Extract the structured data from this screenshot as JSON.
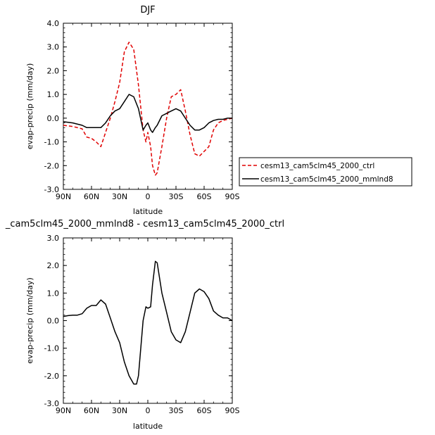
{
  "chart_data": [
    {
      "type": "line",
      "title": "DJF",
      "xlabel": "latitude",
      "ylabel": "evap-precip (mm/day)",
      "xlim": [
        90,
        -90
      ],
      "ylim": [
        -3.0,
        4.0
      ],
      "x_ticks": [
        90,
        60,
        30,
        0,
        -30,
        -60,
        -90
      ],
      "x_tick_labels": [
        "90N",
        "60N",
        "30N",
        "0",
        "30S",
        "60S",
        "90S"
      ],
      "y_ticks": [
        -3.0,
        -2.0,
        -1.0,
        0.0,
        1.0,
        2.0,
        3.0,
        4.0
      ],
      "y_tick_labels": [
        "-3.0",
        "-2.0",
        "-1.0",
        "0.0",
        "1.0",
        "2.0",
        "3.0",
        "4.0"
      ],
      "legend_position": "right",
      "series": [
        {
          "name": "cesm13_cam5clm45_2000_ctrl",
          "color": "#e00000",
          "style": "dashed",
          "x": [
            90,
            80,
            70,
            65,
            60,
            55,
            50,
            45,
            40,
            35,
            30,
            25,
            20,
            15,
            10,
            5,
            2,
            0,
            -3,
            -5,
            -8,
            -10,
            -15,
            -20,
            -25,
            -30,
            -35,
            -40,
            -45,
            -50,
            -55,
            -60,
            -65,
            -70,
            -75,
            -80,
            -85,
            -90
          ],
          "values": [
            -0.3,
            -0.35,
            -0.45,
            -0.8,
            -0.85,
            -1.0,
            -1.2,
            -0.6,
            0.0,
            0.7,
            1.5,
            2.8,
            3.2,
            2.9,
            1.4,
            -0.5,
            -1.0,
            -0.6,
            -1.2,
            -2.0,
            -2.4,
            -2.3,
            -1.2,
            0.0,
            0.9,
            1.0,
            1.2,
            0.3,
            -0.7,
            -1.5,
            -1.6,
            -1.4,
            -1.2,
            -0.5,
            -0.2,
            -0.1,
            -0.05,
            0.0
          ]
        },
        {
          "name": "cesm13_cam5clm45_2000_mmlnd8",
          "color": "#000000",
          "style": "solid",
          "x": [
            90,
            80,
            70,
            65,
            60,
            55,
            50,
            45,
            40,
            35,
            30,
            25,
            20,
            15,
            10,
            5,
            2,
            0,
            -3,
            -5,
            -8,
            -10,
            -15,
            -20,
            -25,
            -30,
            -35,
            -40,
            -45,
            -50,
            -55,
            -60,
            -65,
            -70,
            -75,
            -80,
            -85,
            -90
          ],
          "values": [
            -0.15,
            -0.2,
            -0.3,
            -0.4,
            -0.4,
            -0.4,
            -0.4,
            -0.2,
            0.1,
            0.3,
            0.4,
            0.7,
            1.0,
            0.9,
            0.4,
            -0.5,
            -0.3,
            -0.2,
            -0.5,
            -0.6,
            -0.4,
            -0.3,
            0.1,
            0.2,
            0.3,
            0.4,
            0.3,
            0.0,
            -0.3,
            -0.5,
            -0.5,
            -0.4,
            -0.2,
            -0.1,
            -0.05,
            -0.05,
            0.0,
            0.0
          ]
        }
      ]
    },
    {
      "type": "line",
      "title": "_cam5clm45_2000_mmlnd8 - cesm13_cam5clm45_2000_ctrl",
      "xlabel": "latitude",
      "ylabel": "evap-precip (mm/day)",
      "xlim": [
        90,
        -90
      ],
      "ylim": [
        -3.0,
        3.0
      ],
      "x_ticks": [
        90,
        60,
        30,
        0,
        -30,
        -60,
        -90
      ],
      "x_tick_labels": [
        "90N",
        "60N",
        "30N",
        "0",
        "30S",
        "60S",
        "90S"
      ],
      "y_ticks": [
        -3.0,
        -2.0,
        -1.0,
        0.0,
        1.0,
        2.0,
        3.0
      ],
      "y_tick_labels": [
        "-3.0",
        "-2.0",
        "-1.0",
        "0.0",
        "1.0",
        "2.0",
        "3.0"
      ],
      "series": [
        {
          "color": "#000000",
          "style": "solid",
          "x": [
            90,
            85,
            80,
            75,
            70,
            65,
            60,
            55,
            50,
            45,
            40,
            35,
            30,
            25,
            20,
            15,
            12,
            10,
            5,
            2,
            0,
            -3,
            -5,
            -8,
            -10,
            -15,
            -20,
            -25,
            -30,
            -35,
            -40,
            -45,
            -50,
            -55,
            -60,
            -65,
            -70,
            -75,
            -80,
            -85,
            -90
          ],
          "values": [
            0.15,
            0.18,
            0.2,
            0.2,
            0.25,
            0.45,
            0.55,
            0.55,
            0.75,
            0.6,
            0.1,
            -0.4,
            -0.8,
            -1.5,
            -2.0,
            -2.3,
            -2.3,
            -2.0,
            0.0,
            0.5,
            0.45,
            0.5,
            1.3,
            2.15,
            2.1,
            1.0,
            0.3,
            -0.4,
            -0.7,
            -0.8,
            -0.4,
            0.3,
            1.0,
            1.15,
            1.05,
            0.8,
            0.35,
            0.2,
            0.1,
            0.1,
            0.0
          ]
        }
      ]
    }
  ]
}
